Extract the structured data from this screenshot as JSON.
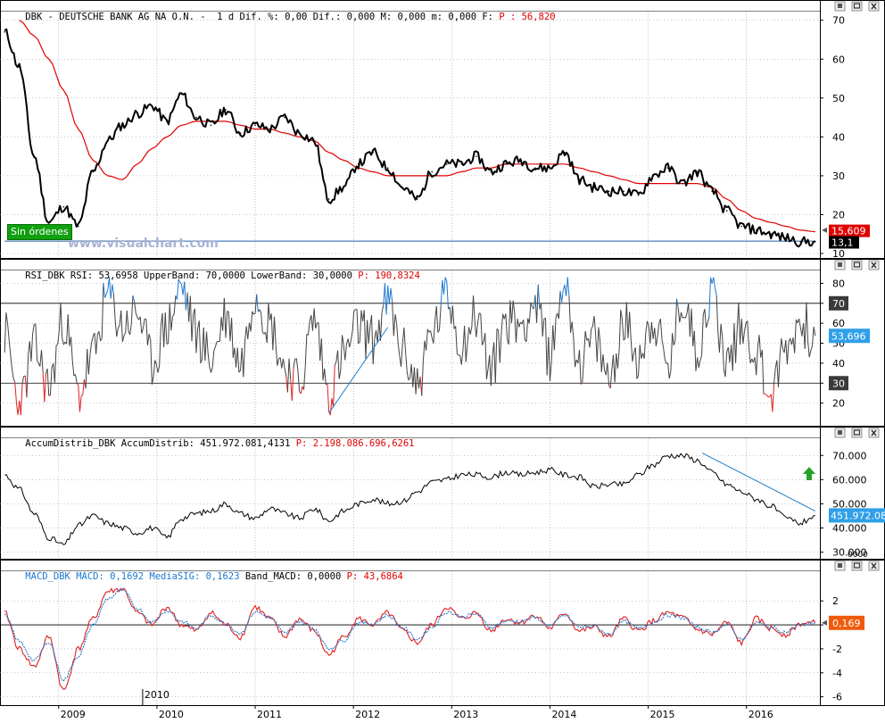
{
  "colors": {
    "price": "#000000",
    "moving_average": "#e00000",
    "support_line": "#1f5fa8",
    "rsi_normal": "#444444",
    "rsi_overbought": "#1e78d0",
    "rsi_oversold": "#e02020",
    "trend_line": "#1e7ec8",
    "macd": "#e02020",
    "signal": "#1e78d0",
    "grid": "#8a8a8a",
    "title_red": "#e00000",
    "title_blue": "#1e78d0",
    "ma_badge": "#e00000",
    "price_badge": "#000000",
    "rsi_badge": "#2f9fe8",
    "accum_badge": "#2f9fe8",
    "macd_badge": "#f05a0a",
    "up_arrow": "#27a327",
    "orders_bg": "#10a010"
  },
  "panels": {
    "price": {
      "title_main": "DBK - DEUTSCHE BANK AG NA O.N. -  1 d Dif. %: 0,00 Dif.: 0,000 M: 0,000 m: 0,000 F: ",
      "title_value": "P : 56,820",
      "watermark": "www.visualchart.com",
      "orders_label": "Sin órdenes",
      "ma_badge": "15,609",
      "price_badge": "13,1",
      "icons": [
        "panel-menu-icon",
        "maximize-icon",
        "close-icon"
      ]
    },
    "rsi": {
      "title_main": "RSI_DBK RSI: 53,6958 UpperBand: 70,0000 LowerBand: 30,0000 ",
      "title_value": "P: 190,8324",
      "badge_upper": "70",
      "badge_lower": "30",
      "badge_value": "53,696"
    },
    "accum": {
      "title_main": "AccumDistrib_DBK AccumDistrib: 451.972.081,4131 ",
      "title_value": "P: 2.198.086.696,6261",
      "badge_value": "451.972.08",
      "scale_suffix": "0000"
    },
    "macd": {
      "title_a": "MACD_DBK MACD: 0,1692 ",
      "title_b": "MediaSIG: 0,1623",
      "title_c": " Band_MACD: 0,0000 ",
      "title_value": "P: 43,6864",
      "badge_value": "0,169"
    }
  },
  "x_axis": {
    "labels": [
      "2009",
      "2010",
      "2011",
      "2012",
      "2013",
      "2014",
      "2015",
      "2016"
    ],
    "cursor_label": "2010"
  },
  "chart_data": [
    {
      "type": "line",
      "title": "DBK - DEUTSCHE BANK AG NA O.N.",
      "ylim": [
        10,
        72
      ],
      "yticks": [
        10,
        20,
        30,
        40,
        50,
        60,
        70
      ],
      "grid": true,
      "x": [
        2008.45,
        2008.6,
        2008.75,
        2008.9,
        2009.05,
        2009.2,
        2009.35,
        2009.5,
        2009.65,
        2009.8,
        2009.95,
        2010.1,
        2010.25,
        2010.4,
        2010.55,
        2010.7,
        2010.85,
        2011.0,
        2011.15,
        2011.3,
        2011.45,
        2011.6,
        2011.75,
        2011.9,
        2012.05,
        2012.2,
        2012.35,
        2012.5,
        2012.65,
        2012.8,
        2012.95,
        2013.1,
        2013.25,
        2013.4,
        2013.55,
        2013.7,
        2013.85,
        2014.0,
        2014.15,
        2014.3,
        2014.45,
        2014.6,
        2014.75,
        2014.9,
        2015.05,
        2015.2,
        2015.35,
        2015.5,
        2015.65,
        2015.8,
        2015.95,
        2016.1,
        2016.25,
        2016.4,
        2016.55,
        2016.7
      ],
      "series": [
        {
          "values": [
            67,
            58,
            35,
            18,
            22,
            17,
            31,
            39,
            43,
            46,
            48,
            44,
            51,
            45,
            43,
            47,
            41,
            43,
            42,
            45,
            41,
            39,
            24,
            27,
            33,
            36,
            32,
            27,
            24,
            31,
            33,
            33,
            35,
            31,
            33,
            34,
            32,
            32,
            36,
            29,
            27,
            26,
            26,
            25,
            30,
            32,
            28,
            31,
            26,
            21,
            17,
            16,
            15,
            14,
            13,
            13.1
          ]
        },
        {
          "values": [
            null,
            70,
            66,
            60,
            52,
            42,
            34,
            30,
            29,
            33,
            37,
            40,
            43,
            44,
            44,
            44,
            43,
            42,
            42,
            41,
            40,
            39,
            36,
            34,
            32,
            31,
            30,
            30,
            30,
            30,
            30,
            31,
            32,
            32,
            33,
            33,
            33,
            33,
            33,
            32,
            31,
            30,
            29,
            28,
            28,
            28,
            28,
            28,
            27,
            24,
            21,
            19,
            18,
            17,
            16,
            15.6
          ]
        },
        {
          "values": [
            13.2,
            13.2,
            13.2,
            13.2,
            13.2,
            13.2,
            13.2,
            13.2,
            13.2,
            13.2,
            13.2,
            13.2,
            13.2,
            13.2,
            13.2,
            13.2,
            13.2,
            13.2,
            13.2,
            13.2,
            13.2,
            13.2,
            13.2,
            13.2,
            13.2,
            13.2,
            13.2,
            13.2,
            13.2,
            13.2,
            13.2,
            13.2,
            13.2,
            13.2,
            13.2,
            13.2,
            13.2,
            13.2,
            13.2,
            13.2,
            13.2,
            13.2,
            13.2,
            13.2,
            13.2,
            13.2,
            13.2,
            13.2,
            13.2,
            13.2,
            13.2,
            13.2,
            13.2,
            13.2,
            13.2,
            13.2
          ]
        }
      ]
    },
    {
      "type": "line",
      "title": "RSI_DBK RSI",
      "ylim": [
        10,
        86
      ],
      "yticks": [
        20,
        30,
        40,
        50,
        60,
        70,
        80
      ],
      "bands": [
        70,
        30
      ],
      "x": [
        2008.45,
        2008.6,
        2008.75,
        2008.9,
        2009.05,
        2009.2,
        2009.35,
        2009.5,
        2009.65,
        2009.8,
        2009.95,
        2010.1,
        2010.25,
        2010.4,
        2010.55,
        2010.7,
        2010.85,
        2011.0,
        2011.15,
        2011.3,
        2011.45,
        2011.6,
        2011.75,
        2011.9,
        2012.05,
        2012.2,
        2012.35,
        2012.5,
        2012.65,
        2012.8,
        2012.95,
        2013.1,
        2013.25,
        2013.4,
        2013.55,
        2013.7,
        2013.85,
        2014.0,
        2014.15,
        2014.3,
        2014.45,
        2014.6,
        2014.75,
        2014.9,
        2015.05,
        2015.2,
        2015.35,
        2015.5,
        2015.65,
        2015.8,
        2015.95,
        2016.1,
        2016.25,
        2016.4,
        2016.55,
        2016.7
      ],
      "series": [
        {
          "values": [
            55,
            18,
            48,
            28,
            62,
            24,
            44,
            74,
            58,
            66,
            40,
            58,
            78,
            55,
            42,
            64,
            40,
            76,
            60,
            38,
            30,
            62,
            25,
            44,
            58,
            52,
            70,
            46,
            30,
            55,
            74,
            50,
            64,
            36,
            62,
            60,
            70,
            44,
            82,
            40,
            52,
            32,
            60,
            44,
            62,
            38,
            72,
            48,
            76,
            40,
            60,
            46,
            24,
            48,
            60,
            53.7
          ]
        }
      ],
      "trend_line": {
        "from": [
          2011.75,
          15
        ],
        "to": [
          2012.35,
          58
        ]
      }
    },
    {
      "type": "line",
      "title": "AccumDistrib_DBK AccumDistrib",
      "ylim": [
        28000,
        76000
      ],
      "yticks": [
        30000,
        40000,
        50000,
        60000,
        70000
      ],
      "x": [
        2008.45,
        2008.6,
        2008.75,
        2008.9,
        2009.05,
        2009.2,
        2009.35,
        2009.5,
        2009.65,
        2009.8,
        2009.95,
        2010.1,
        2010.25,
        2010.4,
        2010.55,
        2010.7,
        2010.85,
        2011.0,
        2011.15,
        2011.3,
        2011.45,
        2011.6,
        2011.75,
        2011.9,
        2012.05,
        2012.2,
        2012.35,
        2012.5,
        2012.65,
        2012.8,
        2012.95,
        2013.1,
        2013.25,
        2013.4,
        2013.55,
        2013.7,
        2013.85,
        2014.0,
        2014.15,
        2014.3,
        2014.45,
        2014.6,
        2014.75,
        2014.9,
        2015.05,
        2015.2,
        2015.35,
        2015.5,
        2015.65,
        2015.8,
        2015.95,
        2016.1,
        2016.25,
        2016.4,
        2016.55,
        2016.7
      ],
      "series": [
        {
          "values": [
            62000,
            56000,
            46000,
            36000,
            33000,
            41000,
            45000,
            42000,
            40000,
            38000,
            40000,
            36000,
            44000,
            46000,
            47000,
            50000,
            46000,
            44000,
            48000,
            46000,
            44000,
            48000,
            43000,
            47000,
            50000,
            52000,
            50000,
            51000,
            55000,
            59000,
            60000,
            62000,
            62000,
            61000,
            63000,
            62000,
            63000,
            64000,
            62000,
            61000,
            57000,
            58000,
            58000,
            62000,
            66000,
            70000,
            70000,
            68000,
            63000,
            58000,
            55000,
            52000,
            49000,
            44000,
            42000,
            45197
          ]
        }
      ],
      "trend_line": {
        "from": [
          2015.55,
          71000
        ],
        "to": [
          2016.7,
          47000
        ]
      }
    },
    {
      "type": "line",
      "title": "MACD_DBK",
      "ylim": [
        -6.4,
        4.4
      ],
      "yticks": [
        -6,
        -4,
        -2,
        0,
        2
      ],
      "x": [
        2008.45,
        2008.6,
        2008.75,
        2008.9,
        2009.05,
        2009.2,
        2009.35,
        2009.5,
        2009.65,
        2009.8,
        2009.95,
        2010.1,
        2010.25,
        2010.4,
        2010.55,
        2010.7,
        2010.85,
        2011.0,
        2011.15,
        2011.3,
        2011.45,
        2011.6,
        2011.75,
        2011.9,
        2012.05,
        2012.2,
        2012.35,
        2012.5,
        2012.65,
        2012.8,
        2012.95,
        2013.1,
        2013.25,
        2013.4,
        2013.55,
        2013.7,
        2013.85,
        2014.0,
        2014.15,
        2014.3,
        2014.45,
        2014.6,
        2014.75,
        2014.9,
        2015.05,
        2015.2,
        2015.35,
        2015.5,
        2015.65,
        2015.8,
        2015.95,
        2016.1,
        2016.25,
        2016.4,
        2016.55,
        2016.7
      ],
      "series": [
        {
          "values": [
            1.0,
            -2.0,
            -3.5,
            -1.0,
            -5.5,
            -2.0,
            0.5,
            2.8,
            3.0,
            1.0,
            0.0,
            1.5,
            0.0,
            -0.5,
            1.0,
            0.0,
            -1.0,
            1.5,
            0.5,
            -1.0,
            0.5,
            -0.5,
            -2.5,
            -1.0,
            0.5,
            0.0,
            1.0,
            -0.5,
            -1.5,
            0.0,
            1.5,
            0.5,
            1.0,
            -0.5,
            0.5,
            0.2,
            0.8,
            -0.3,
            1.0,
            -0.5,
            -0.2,
            -1.0,
            0.5,
            -0.5,
            0.3,
            1.0,
            0.6,
            -0.4,
            -0.8,
            0.2,
            -1.5,
            0.5,
            -0.3,
            -0.8,
            0.1,
            0.169
          ]
        },
        {
          "values": [
            0.8,
            -1.4,
            -3.0,
            -1.4,
            -4.6,
            -2.6,
            0.0,
            2.2,
            2.9,
            1.4,
            0.2,
            1.2,
            0.3,
            -0.3,
            0.8,
            0.1,
            -0.7,
            1.1,
            0.6,
            -0.7,
            0.3,
            -0.3,
            -2.0,
            -1.3,
            0.2,
            0.1,
            0.8,
            -0.2,
            -1.2,
            -0.2,
            1.1,
            0.7,
            0.9,
            -0.2,
            0.3,
            0.3,
            0.6,
            -0.1,
            0.8,
            -0.2,
            -0.1,
            -0.8,
            0.3,
            -0.3,
            0.2,
            0.8,
            0.6,
            -0.2,
            -0.6,
            0.0,
            -1.2,
            0.2,
            -0.2,
            -0.6,
            0.0,
            0.1623
          ]
        }
      ]
    }
  ]
}
